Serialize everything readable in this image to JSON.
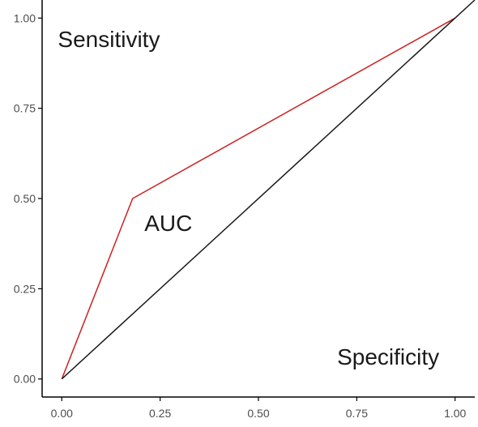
{
  "chart_data": {
    "type": "line",
    "title": "",
    "xlabel": "",
    "ylabel": "",
    "xlim": [
      -0.05,
      1.05
    ],
    "ylim": [
      -0.05,
      1.05
    ],
    "x_ticks": [
      0.0,
      0.25,
      0.5,
      0.75,
      1.0
    ],
    "x_tick_labels": [
      "0.00",
      "0.25",
      "0.50",
      "0.75",
      "1.00"
    ],
    "y_ticks": [
      0.0,
      0.25,
      0.5,
      0.75,
      1.0
    ],
    "y_tick_labels": [
      "0.00",
      "0.25",
      "0.50",
      "0.75",
      "1.00"
    ],
    "grid": false,
    "series": [
      {
        "x": [
          0.0,
          0.18,
          1.0
        ],
        "y": [
          0.0,
          0.5,
          1.0
        ],
        "color": "#cc2222"
      },
      {
        "x": [
          0.0,
          1.05
        ],
        "y": [
          0.0,
          1.05
        ],
        "color": "#1a1a1a"
      }
    ],
    "annotations": [
      {
        "text": "Sensitivity",
        "x": -0.01,
        "y": 0.92
      },
      {
        "text": "AUC",
        "x": 0.21,
        "y": 0.41
      },
      {
        "text": "Specificity",
        "x": 0.7,
        "y": 0.04
      }
    ]
  }
}
